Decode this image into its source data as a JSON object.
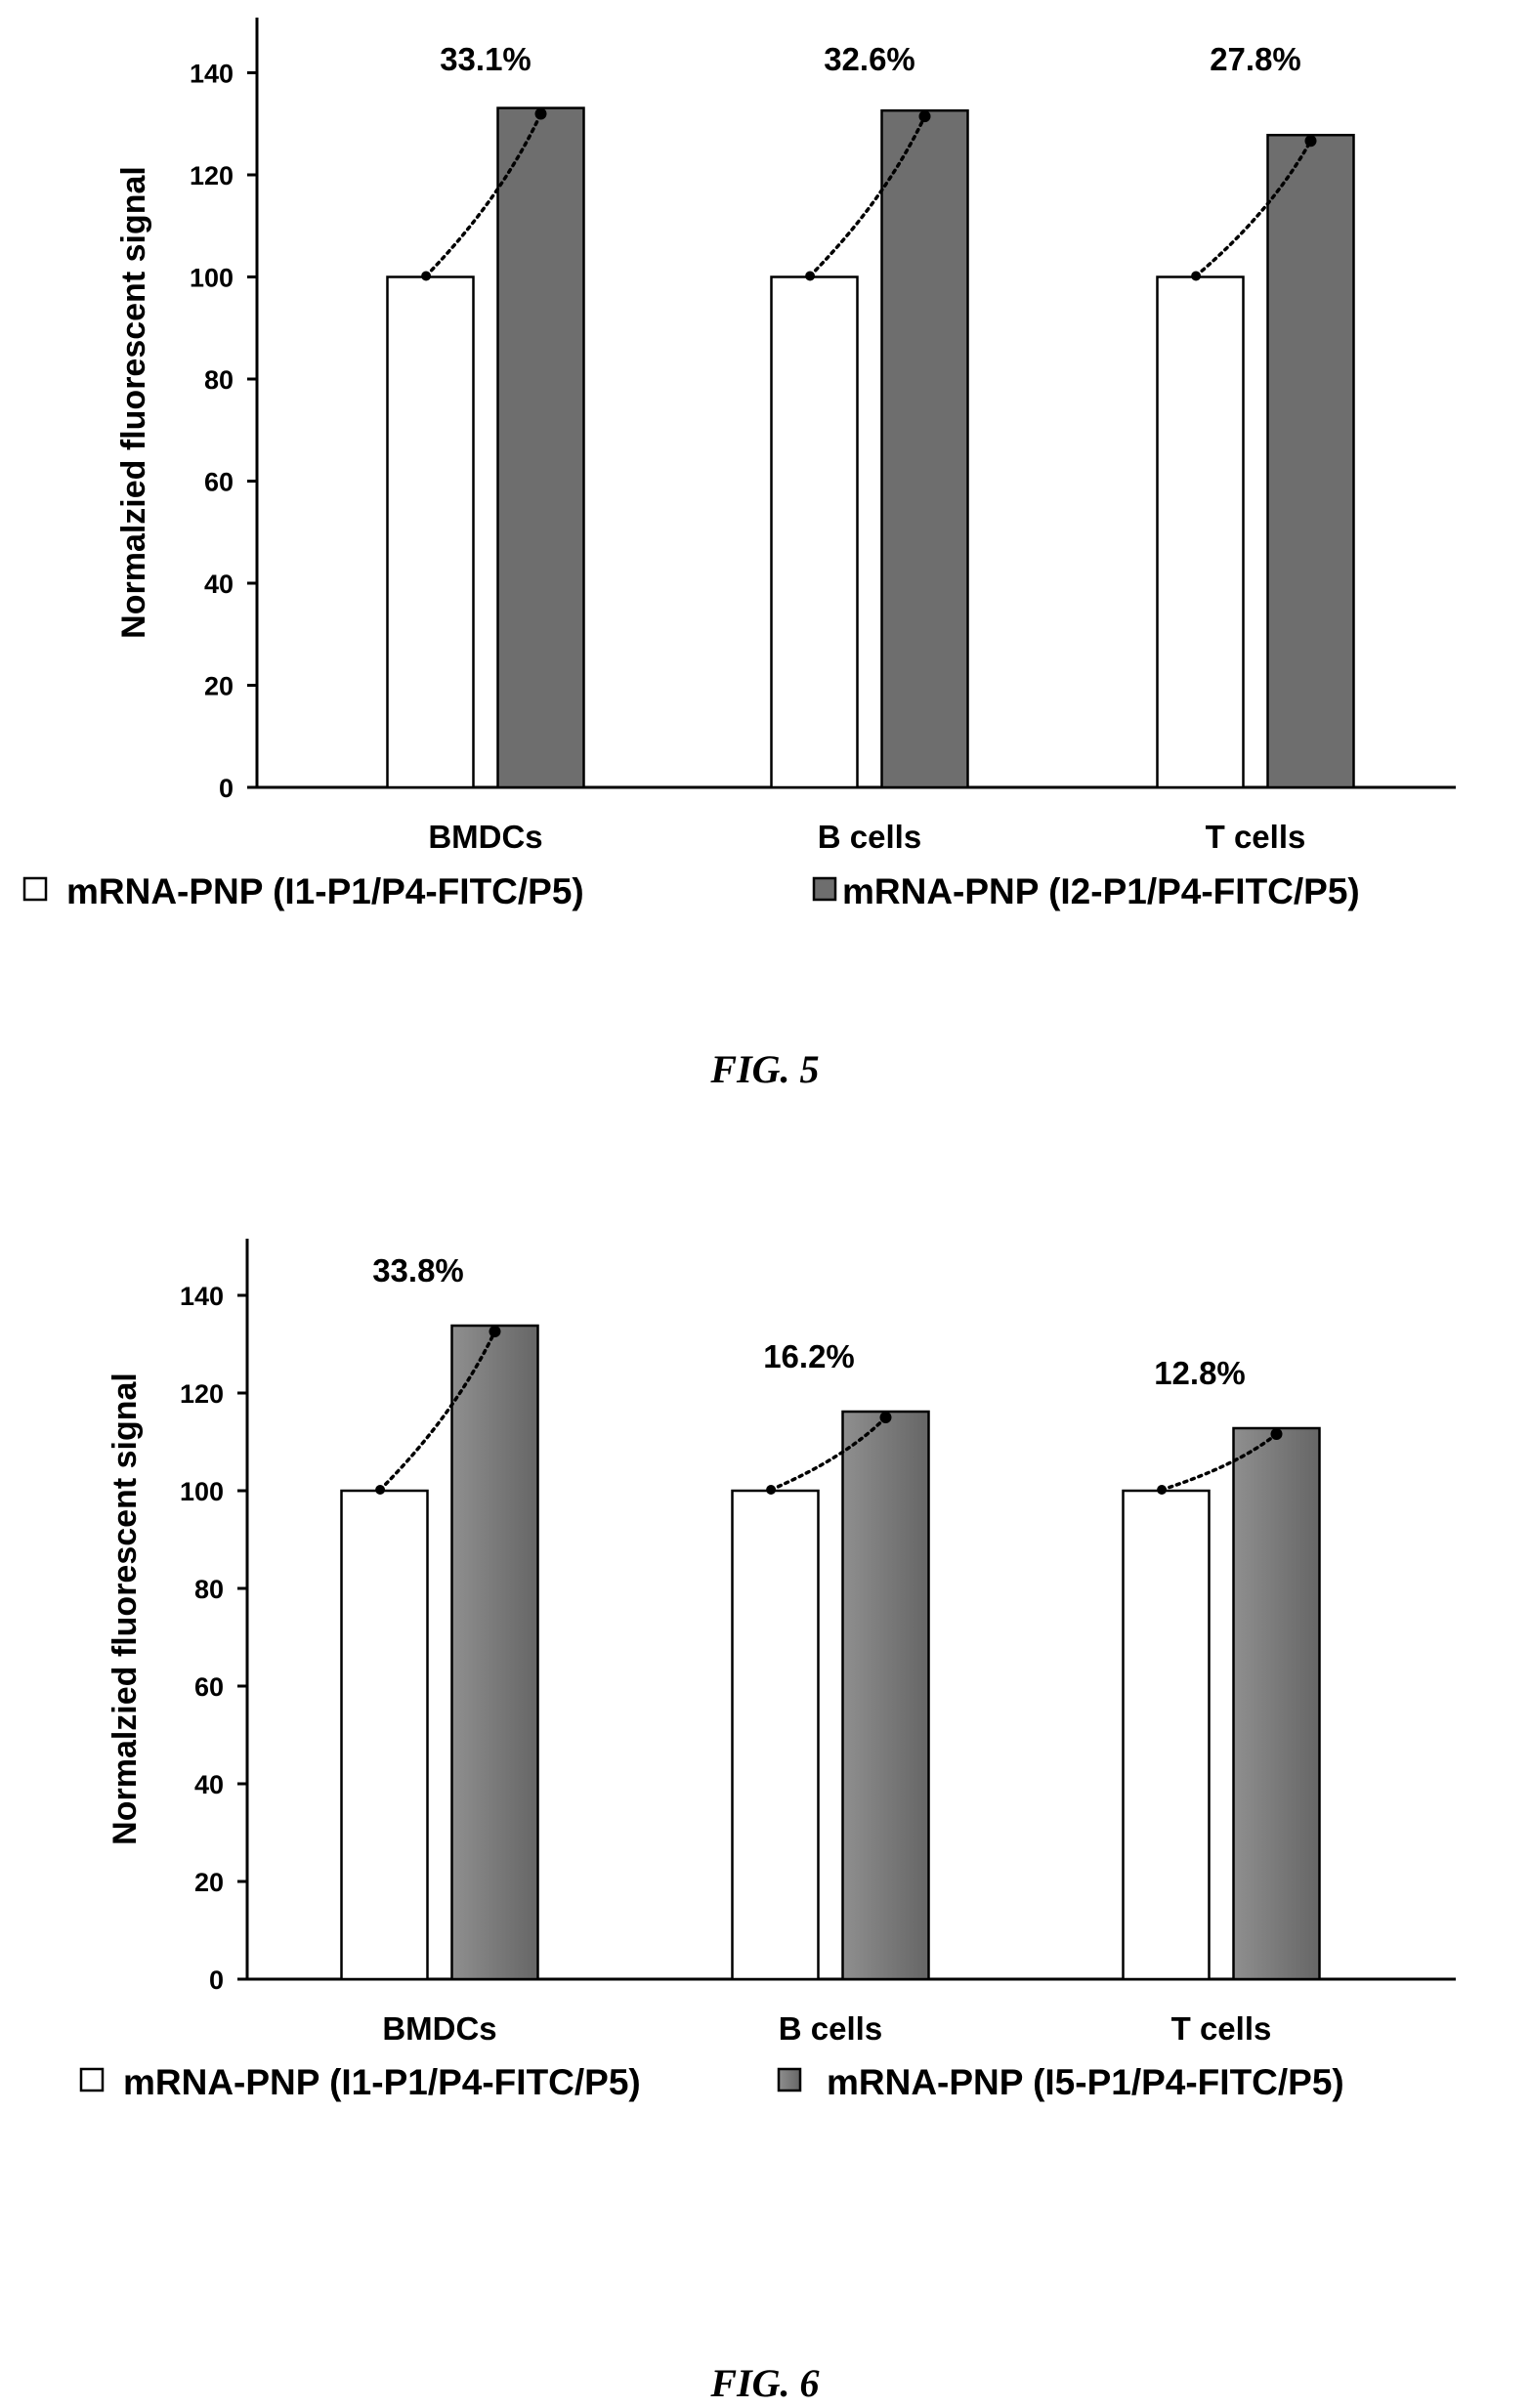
{
  "chart_data": [
    {
      "type": "bar",
      "caption": "FIG. 5",
      "ylabel": "Normalzied fluorescent signal",
      "xlabel": "",
      "ylim": [
        0,
        150
      ],
      "yticks": [
        0,
        20,
        40,
        60,
        80,
        100,
        120,
        140
      ],
      "categories": [
        "BMDCs",
        "B cells",
        "T cells"
      ],
      "series": [
        {
          "name": "mRNA-PNP (I1-P1/P4-FITC/P5)",
          "values": [
            100,
            100,
            100
          ],
          "color": "#ffffff"
        },
        {
          "name": "mRNA-PNP (I2-P1/P4-FITC/P5)",
          "values": [
            133.1,
            132.6,
            127.8
          ],
          "color": "#6e6e6e"
        }
      ],
      "annotations": [
        "33.1%",
        "32.6%",
        "27.8%"
      ],
      "legend_position": "bottom"
    },
    {
      "type": "bar",
      "caption": "FIG. 6",
      "ylabel": "Normalzied fluorescent signal",
      "xlabel": "",
      "ylim": [
        0,
        150
      ],
      "yticks": [
        0,
        20,
        40,
        60,
        80,
        100,
        120,
        140
      ],
      "categories": [
        "BMDCs",
        "B cells",
        "T cells"
      ],
      "series": [
        {
          "name": "mRNA-PNP (I1-P1/P4-FITC/P5)",
          "values": [
            100,
            100,
            100
          ],
          "color": "#ffffff"
        },
        {
          "name": "mRNA-PNP (I5-P1/P4-FITC/P5)",
          "values": [
            133.8,
            116.2,
            112.8
          ],
          "color": "#7a7a7a"
        }
      ],
      "annotations": [
        "33.8%",
        "16.2%",
        "12.8%"
      ],
      "legend_position": "bottom"
    }
  ]
}
